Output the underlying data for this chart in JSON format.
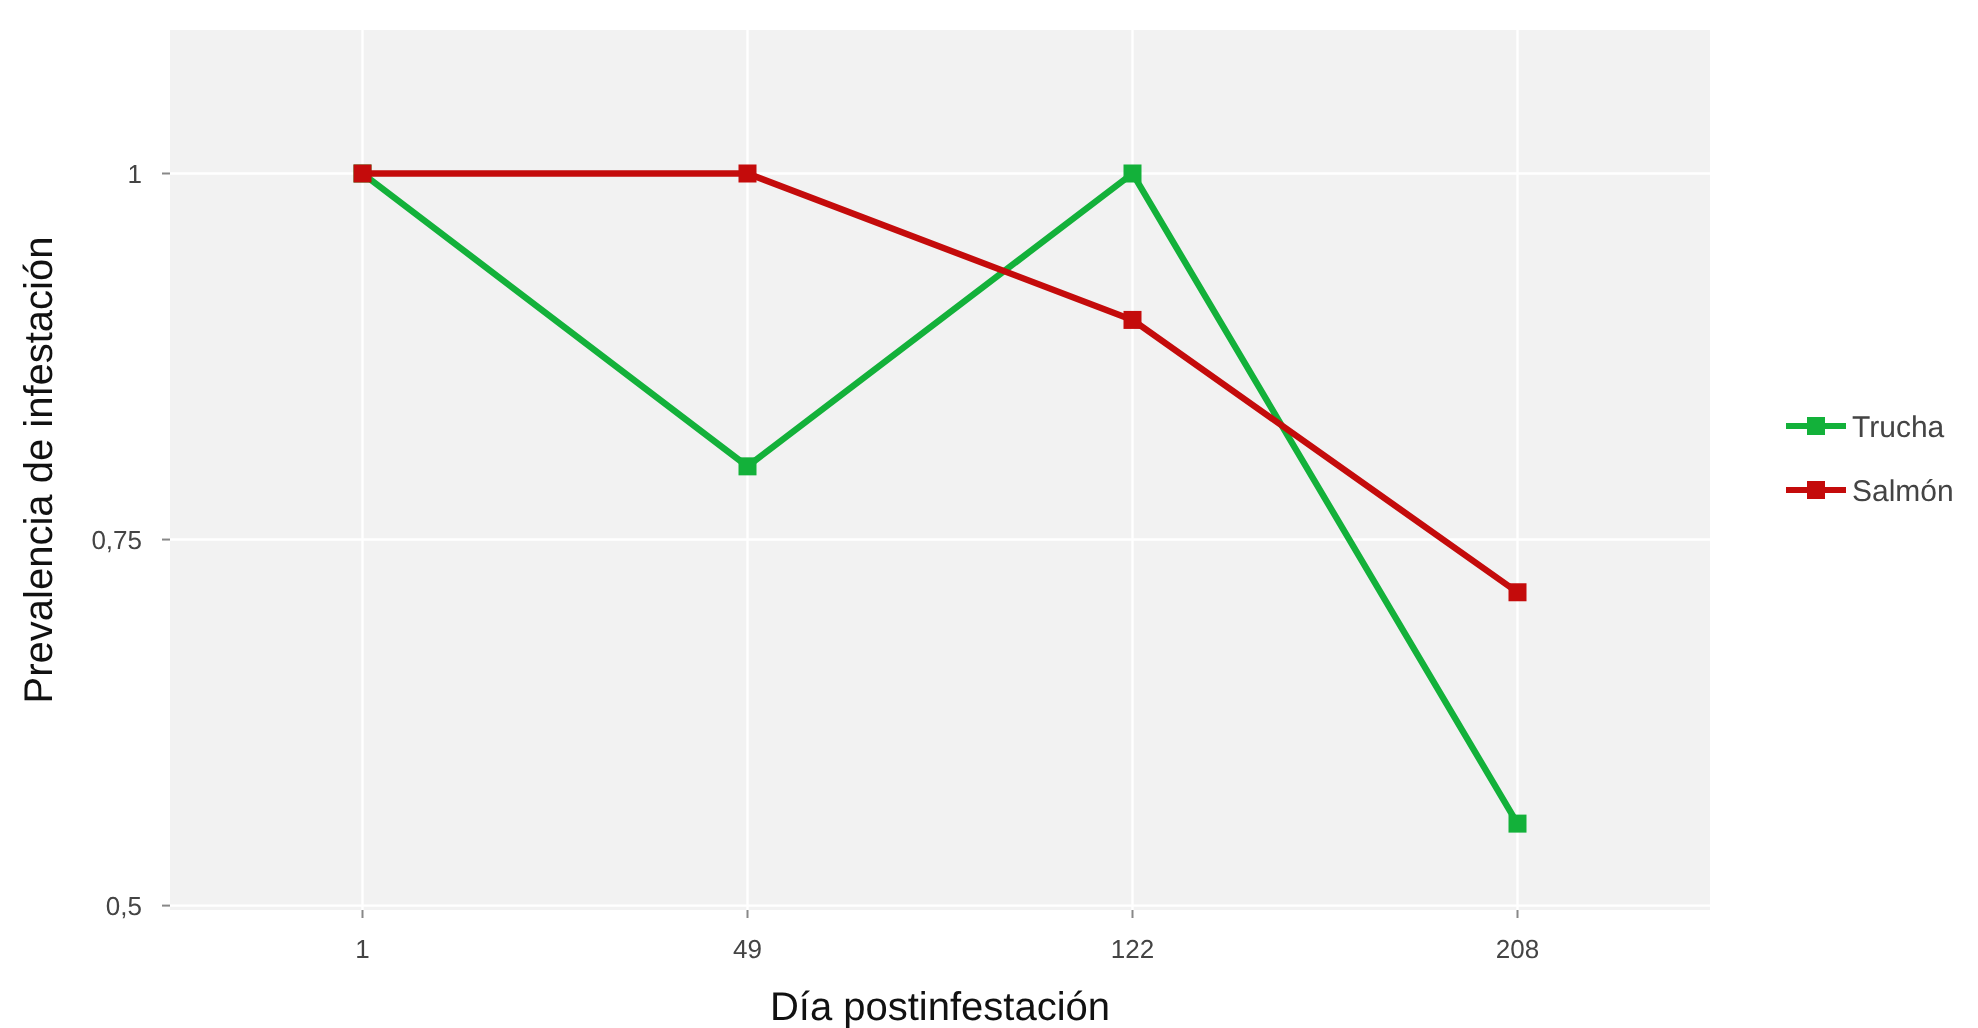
{
  "chart_data": {
    "type": "line",
    "xlabel": "Día postinfestación",
    "ylabel": "Prevalencia de infestación",
    "categories": [
      "1",
      "49",
      "122",
      "208"
    ],
    "series": [
      {
        "name": "Trucha",
        "color": "#13b13a",
        "values": [
          1,
          0.8,
          1,
          0.556
        ]
      },
      {
        "name": "Salmón",
        "color": "#c40b0b",
        "values": [
          1,
          1,
          0.9,
          0.714
        ]
      }
    ],
    "ylim": [
      0.497,
      1.098
    ],
    "yticks": [
      {
        "value": 0.5,
        "label": "0,5"
      },
      {
        "value": 0.75,
        "label": "0,75"
      },
      {
        "value": 1,
        "label": "1"
      }
    ],
    "grid": true,
    "legend": "right",
    "marker": "square",
    "line_style": "solid"
  }
}
